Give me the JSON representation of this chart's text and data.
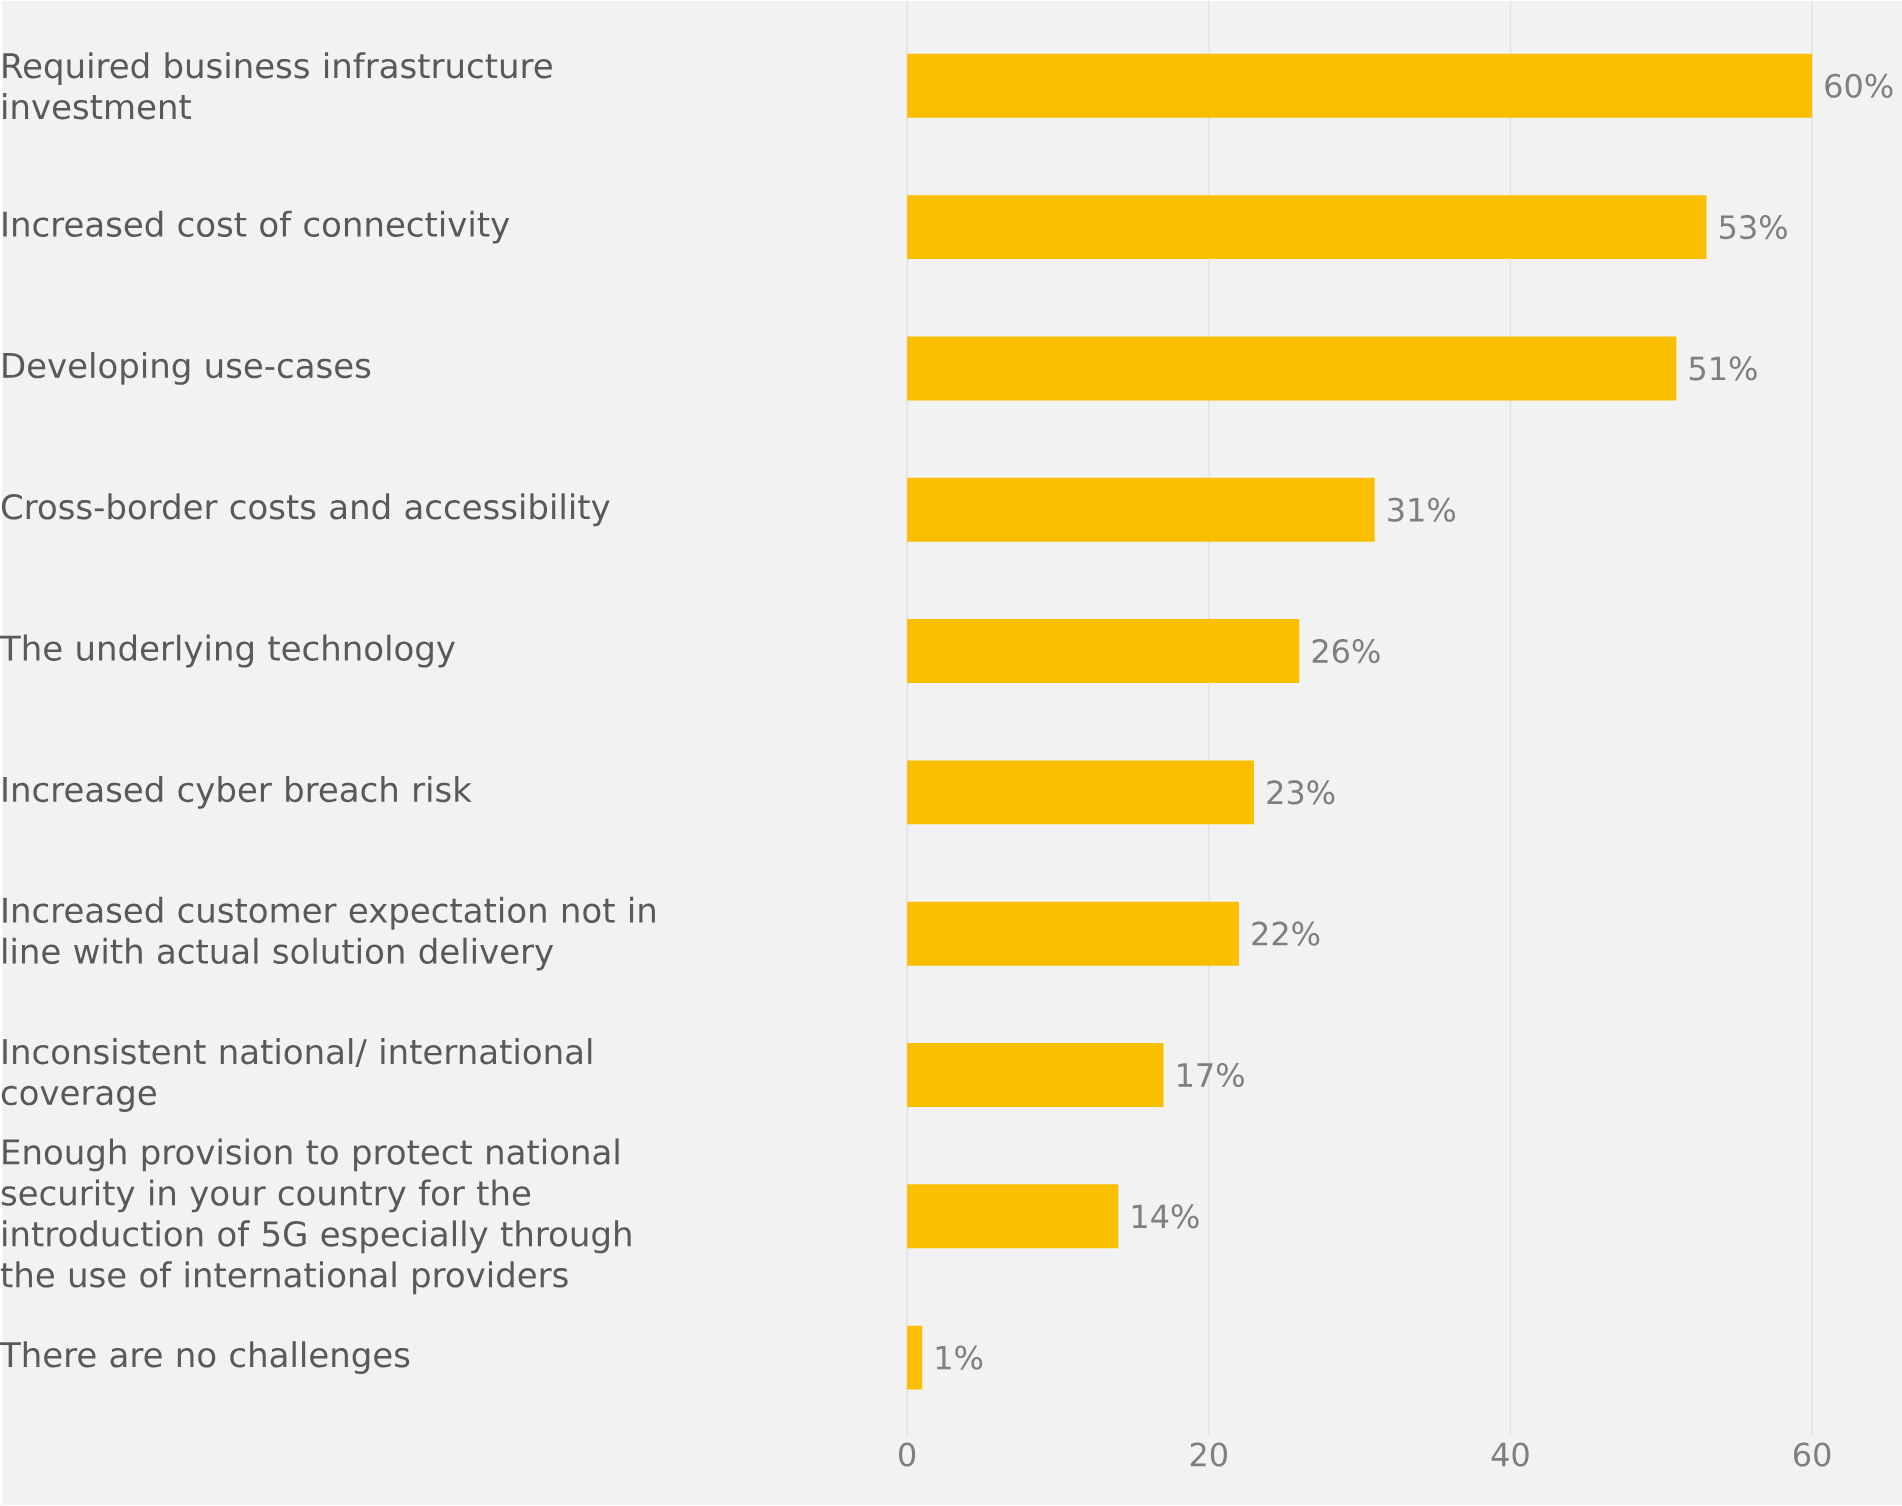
{
  "chart_data": {
    "type": "bar",
    "orientation": "horizontal",
    "categories": [
      "Required business infrastructure investment",
      "Increased cost of connectivity",
      "Developing use-cases",
      "Cross-border costs and accessibility",
      "The underlying technology",
      "Increased cyber breach risk",
      "Increased customer expectation not in line with actual solution delivery",
      "Inconsistent national/ international coverage",
      "Enough provision to protect national security in your country for the introduction of 5G especially through the use of international providers",
      "There are no challenges"
    ],
    "values": [
      60,
      53,
      51,
      31,
      26,
      23,
      22,
      17,
      14,
      1
    ],
    "value_labels": [
      "60%",
      "53%",
      "51%",
      "31%",
      "26%",
      "23%",
      "22%",
      "17%",
      "14%",
      "1%"
    ],
    "color": "#fbbf00",
    "xlim": [
      0,
      60
    ],
    "xticks": [
      0,
      20,
      40,
      60
    ],
    "grid": "x"
  }
}
